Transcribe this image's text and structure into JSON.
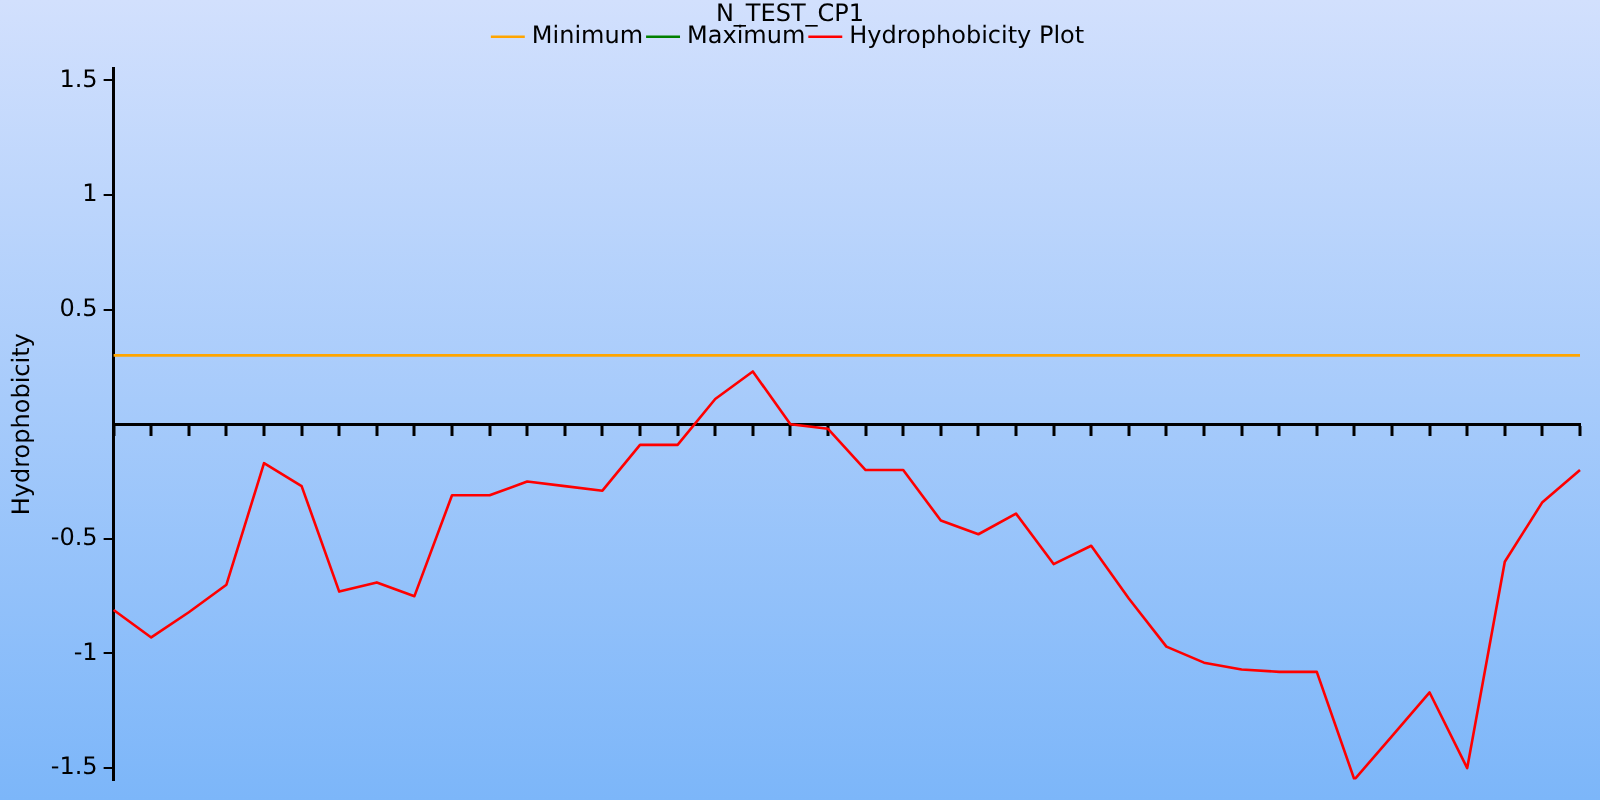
{
  "chart_data": {
    "type": "line",
    "title": "N_TEST_CP1",
    "ylabel": "Hydrophobicity",
    "categories": [
      null,
      null,
      null,
      null,
      null,
      null,
      null,
      null,
      null,
      null,
      null,
      null,
      null,
      null,
      null,
      null,
      null,
      null,
      null,
      null,
      null,
      null,
      null,
      null,
      null,
      null,
      null,
      null,
      null,
      null,
      null,
      null,
      null,
      null,
      null,
      null,
      null,
      null,
      null,
      null
    ],
    "series": [
      {
        "name": "Minimum",
        "color": "#ffa500",
        "values": [
          0.3,
          0.3,
          0.3,
          0.3,
          0.3,
          0.3,
          0.3,
          0.3,
          0.3,
          0.3,
          0.3,
          0.3,
          0.3,
          0.3,
          0.3,
          0.3,
          0.3,
          0.3,
          0.3,
          0.3,
          0.3,
          0.3,
          0.3,
          0.3,
          0.3,
          0.3,
          0.3,
          0.3,
          0.3,
          0.3,
          0.3,
          0.3,
          0.3,
          0.3,
          0.3,
          0.3,
          0.3,
          0.3,
          0.3,
          0.3
        ]
      },
      {
        "name": "Maximum",
        "color": "#008000",
        "values": [
          null,
          null,
          null,
          null,
          null,
          null,
          null,
          null,
          null,
          null,
          null,
          null,
          null,
          null,
          null,
          null,
          null,
          null,
          null,
          null,
          null,
          null,
          null,
          null,
          null,
          null,
          null,
          null,
          null,
          null,
          null,
          null,
          null,
          null,
          null,
          null,
          null,
          null,
          null,
          null
        ]
      },
      {
        "name": "Hydrophobicity Plot",
        "color": "#ff0000",
        "values": [
          -0.81,
          -0.93,
          -0.82,
          -0.7,
          -0.17,
          -0.27,
          -0.73,
          -0.69,
          -0.75,
          -0.31,
          -0.31,
          -0.25,
          -0.27,
          -0.29,
          -0.09,
          -0.09,
          0.11,
          0.23,
          0.0,
          -0.02,
          -0.2,
          -0.2,
          -0.42,
          -0.48,
          -0.39,
          -0.61,
          -0.53,
          -0.76,
          -0.97,
          -1.04,
          -1.07,
          -1.08,
          -1.08,
          -1.55,
          -1.36,
          -1.17,
          -1.5,
          -0.6,
          -0.34,
          -0.2
        ]
      }
    ],
    "ylim": [
      -1.55,
      1.55
    ],
    "yticks": [
      1.5,
      1,
      0.5,
      -0.5,
      -1,
      -1.5
    ],
    "tick_labels": "y",
    "grid": false,
    "legend": "top",
    "marker": "none",
    "line_style": "solid"
  }
}
